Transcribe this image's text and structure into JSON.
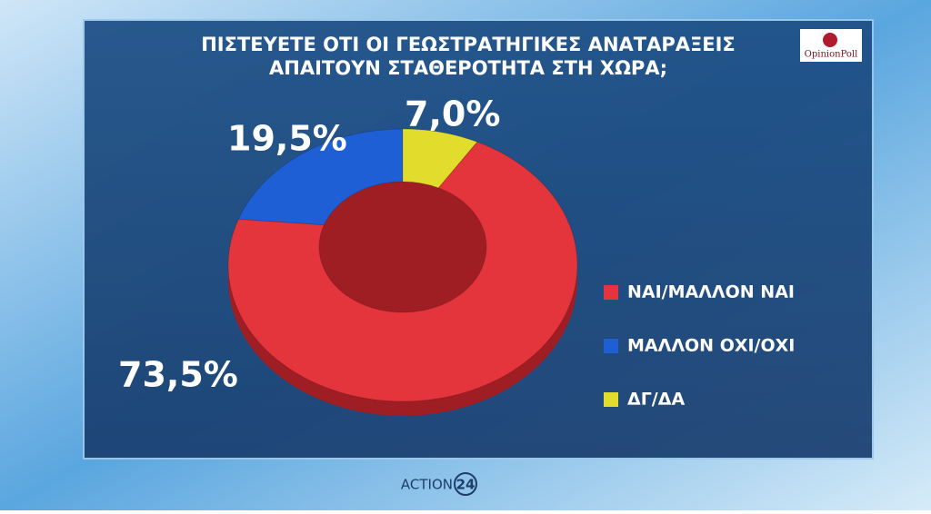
{
  "chart_data": {
    "type": "donut",
    "title": [
      "ΠΙΣΤΕΥΕΤΕ ΟΤΙ ΟΙ ΓΕΩΣΤΡΑΤΗΓΙΚΕΣ ΑΝΑΤΑΡΑΞΕΙΣ",
      "ΑΠΑΙΤΟΥΝ ΣΤΑΘΕΡΟΤΗΤΑ ΣΤΗ ΧΩΡΑ;"
    ],
    "categories": [
      "ΝΑΙ/ΜΑΛΛΟΝ ΝΑΙ",
      "ΜΑΛΛΟΝ ΟΧΙ/ΟΧΙ",
      "ΔΓ/ΔΑ"
    ],
    "values": [
      73.5,
      19.5,
      7.0
    ],
    "value_labels": [
      "73,5%",
      "19,5%",
      "7,0%"
    ],
    "colors": [
      "#e3353b",
      "#1f5fd6",
      "#e2dd2c"
    ],
    "legend": "right"
  },
  "branding": {
    "poll": "OpinionPoll",
    "channel": "ACTION",
    "channel_number": "24"
  }
}
